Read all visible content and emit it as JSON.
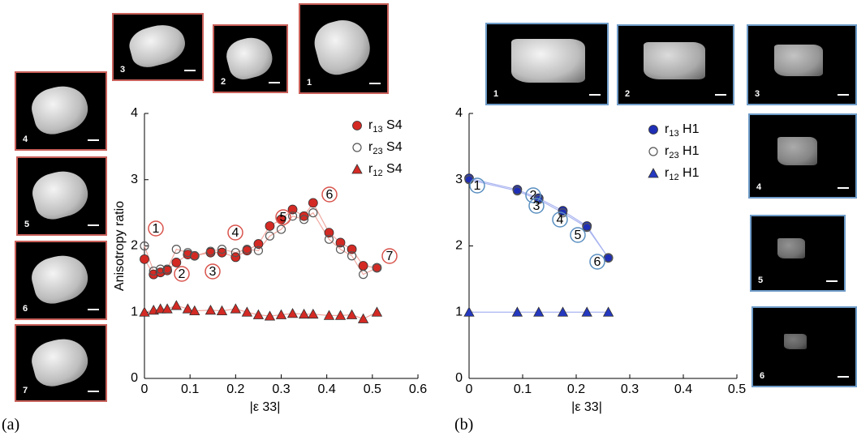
{
  "chart_data": [
    {
      "type": "line",
      "ylabel": "Anisotropy ratio",
      "xlabel": "|ε 33|",
      "x": [
        0,
        0.02,
        0.035,
        0.05,
        0.07,
        0.095,
        0.11,
        0.145,
        0.17,
        0.2,
        0.225,
        0.25,
        0.275,
        0.3,
        0.325,
        0.35,
        0.37,
        0.405,
        0.43,
        0.455,
        0.48,
        0.51
      ],
      "series": [
        {
          "name": "r13 S4",
          "color": "#d42a24",
          "marker": "circle",
          "values": [
            1.8,
            1.57,
            1.6,
            1.63,
            1.75,
            1.87,
            1.85,
            1.9,
            1.9,
            1.83,
            1.93,
            2.03,
            2.3,
            2.4,
            2.55,
            2.45,
            2.65,
            2.2,
            2.05,
            1.95,
            1.7,
            1.67
          ]
        },
        {
          "name": "r23 S4",
          "color": "#555555",
          "marker": "open-circle",
          "values": [
            2.0,
            1.62,
            1.65,
            1.65,
            1.95,
            1.9,
            1.85,
            1.92,
            1.95,
            1.9,
            1.95,
            1.93,
            2.15,
            2.25,
            2.45,
            2.4,
            2.5,
            2.1,
            1.95,
            1.85,
            1.57,
            1.67
          ]
        },
        {
          "name": "r12 S4",
          "color": "#d42a24",
          "marker": "triangle",
          "values": [
            1.0,
            1.03,
            1.05,
            1.05,
            1.1,
            1.05,
            1.02,
            1.03,
            1.02,
            1.05,
            1.0,
            0.96,
            0.94,
            0.96,
            0.98,
            0.97,
            0.97,
            0.95,
            0.95,
            0.96,
            0.9,
            1.0
          ]
        }
      ],
      "line_color": "#f0a8a0",
      "annotation_color": "#d9544d",
      "annotations": [
        "1",
        "2",
        "3",
        "4",
        "5",
        "6",
        "7"
      ],
      "xlim": [
        0,
        0.6
      ],
      "xticks": [
        0,
        0.1,
        0.2,
        0.3,
        0.4,
        0.5,
        0.6
      ],
      "ylim": [
        0,
        4
      ],
      "yticks": [
        0,
        1,
        2,
        3,
        4
      ],
      "grid": false
    },
    {
      "type": "line",
      "xlabel": "|ε 33|",
      "x": [
        0,
        0.09,
        0.13,
        0.175,
        0.22,
        0.26
      ],
      "series": [
        {
          "name": "r13 H1",
          "color": "#1f2fb5",
          "marker": "circle",
          "values": [
            3.02,
            2.85,
            2.72,
            2.53,
            2.3,
            1.82
          ]
        },
        {
          "name": "r23 H1",
          "color": "#555555",
          "marker": "open-circle",
          "values": [
            3.0,
            2.83,
            2.7,
            2.5,
            2.28,
            1.82
          ]
        },
        {
          "name": "r12 H1",
          "color": "#2438c0",
          "marker": "triangle",
          "values": [
            1,
            1,
            1,
            1,
            1,
            1
          ]
        }
      ],
      "line_color": "#a9b4f0",
      "annotation_color": "#5a8fc0",
      "annotations": [
        "1",
        "2",
        "3",
        "4",
        "5",
        "6"
      ],
      "xlim": [
        0,
        0.5
      ],
      "xticks": [
        0,
        0.1,
        0.2,
        0.3,
        0.4,
        0.5
      ],
      "ylim": [
        0,
        4
      ],
      "yticks": [
        0,
        1,
        2,
        3,
        4
      ],
      "grid": false
    }
  ],
  "panel_labels": [
    "(a)",
    "(b)"
  ],
  "thumbnails_a": [
    "3",
    "2",
    "1",
    "4",
    "5",
    "6",
    "7"
  ],
  "thumbnails_b": [
    "1",
    "2",
    "3",
    "4",
    "5",
    "6"
  ]
}
